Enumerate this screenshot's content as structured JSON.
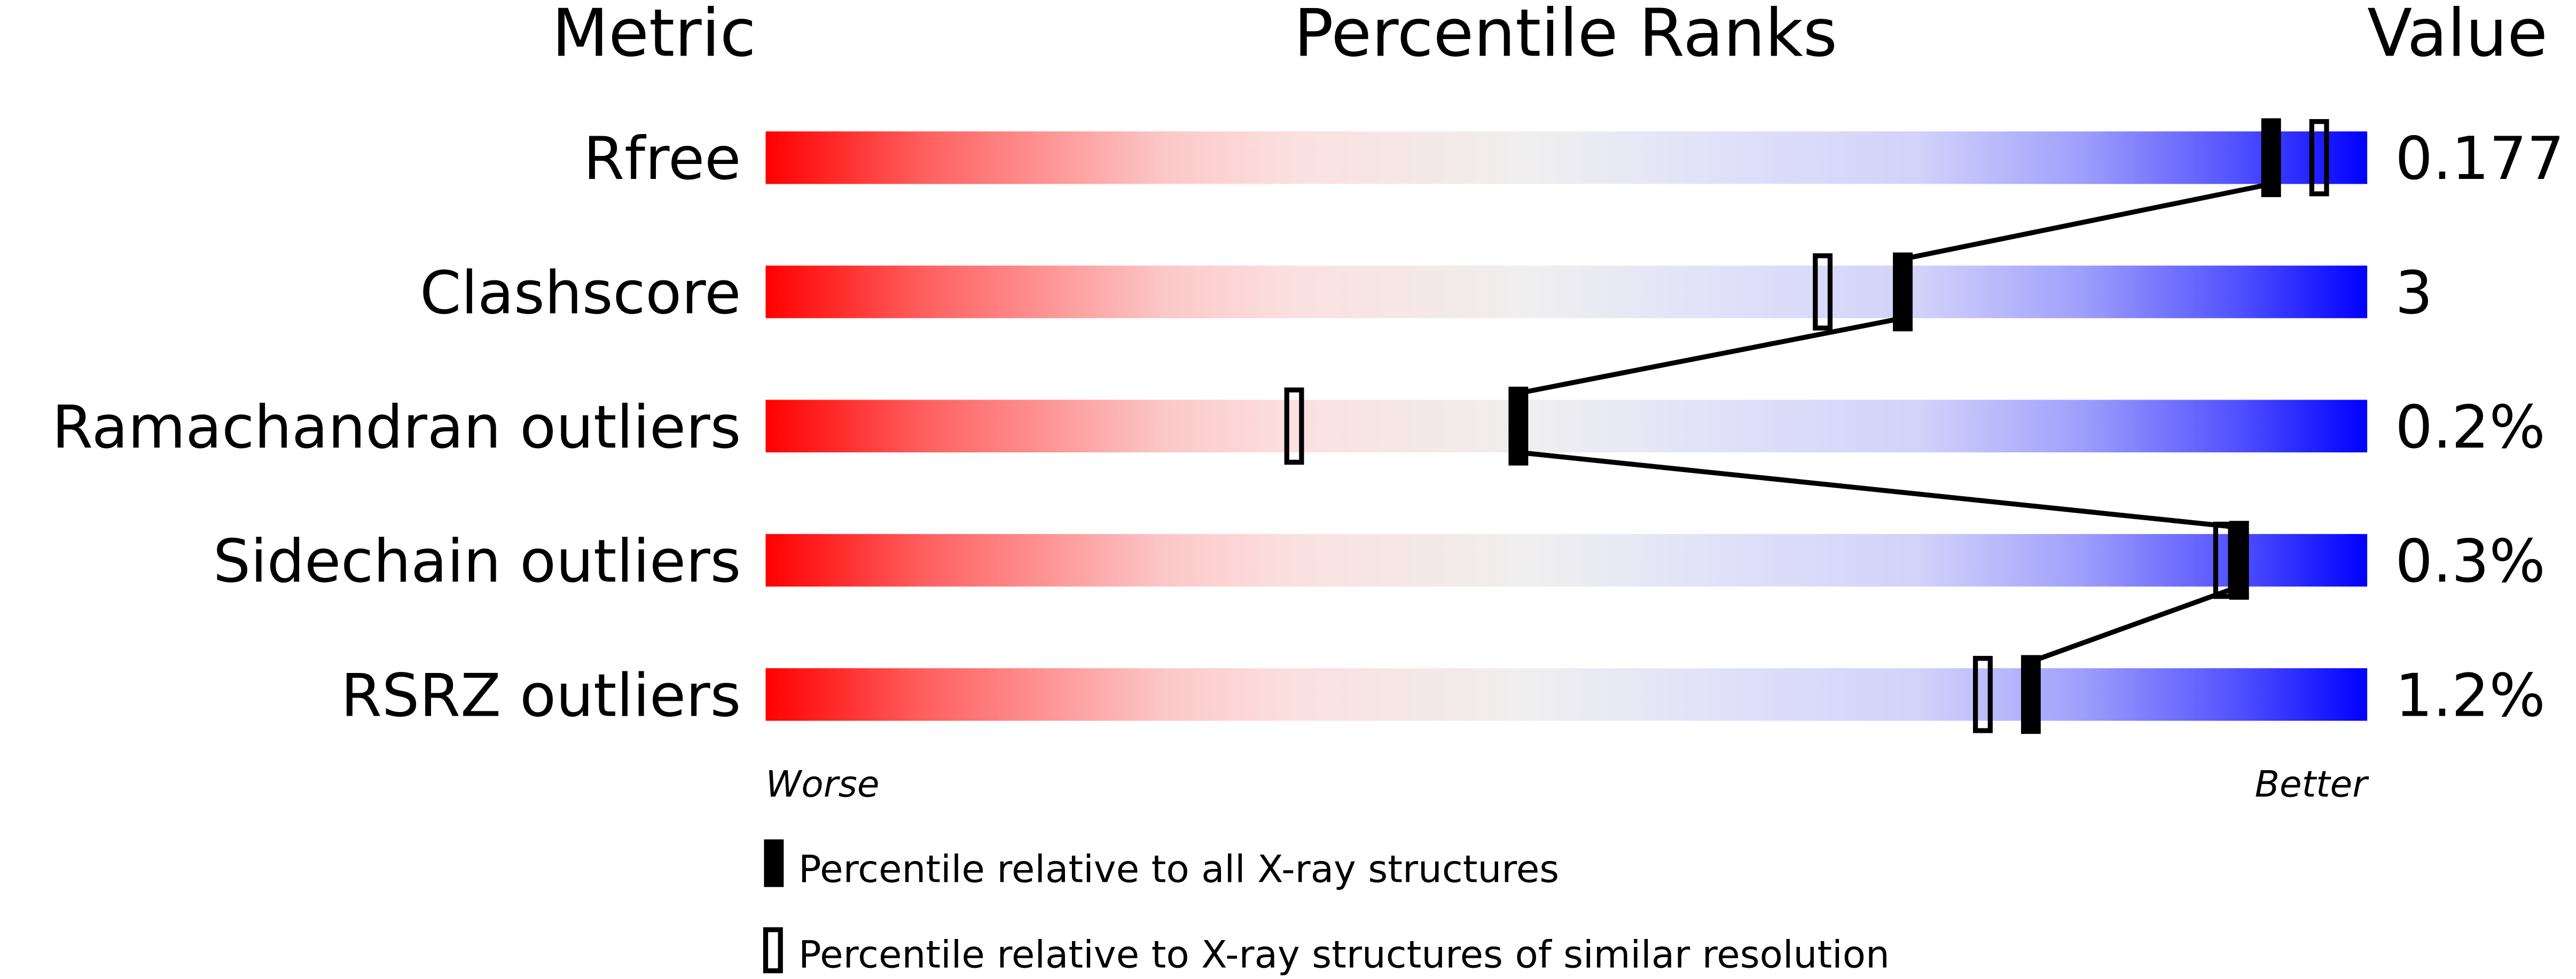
{
  "chart_data": {
    "type": "bar",
    "headers": {
      "metric": "Metric",
      "ranks": "Percentile Ranks",
      "value": "Value"
    },
    "xlim": [
      0,
      100
    ],
    "metrics": [
      {
        "label": "Rfree",
        "value": "0.177",
        "percentile_all": 94,
        "percentile_similar": 97
      },
      {
        "label": "Clashscore",
        "value": "3",
        "percentile_all": 71,
        "percentile_similar": 66
      },
      {
        "label": "Ramachandran outliers",
        "value": "0.2%",
        "percentile_all": 47,
        "percentile_similar": 33
      },
      {
        "label": "Sidechain outliers",
        "value": "0.3%",
        "percentile_all": 92,
        "percentile_similar": 91
      },
      {
        "label": "RSRZ outliers",
        "value": "1.2%",
        "percentile_all": 79,
        "percentile_similar": 76
      }
    ],
    "axis_left_label": "Worse",
    "axis_right_label": "Better",
    "legend": {
      "all": "Percentile relative to all X-ray structures",
      "similar": "Percentile relative to X-ray structures of similar resolution"
    },
    "colors": {
      "worse": "#ff0000",
      "middle": "#f0f0f0",
      "better": "#0000ff"
    }
  }
}
